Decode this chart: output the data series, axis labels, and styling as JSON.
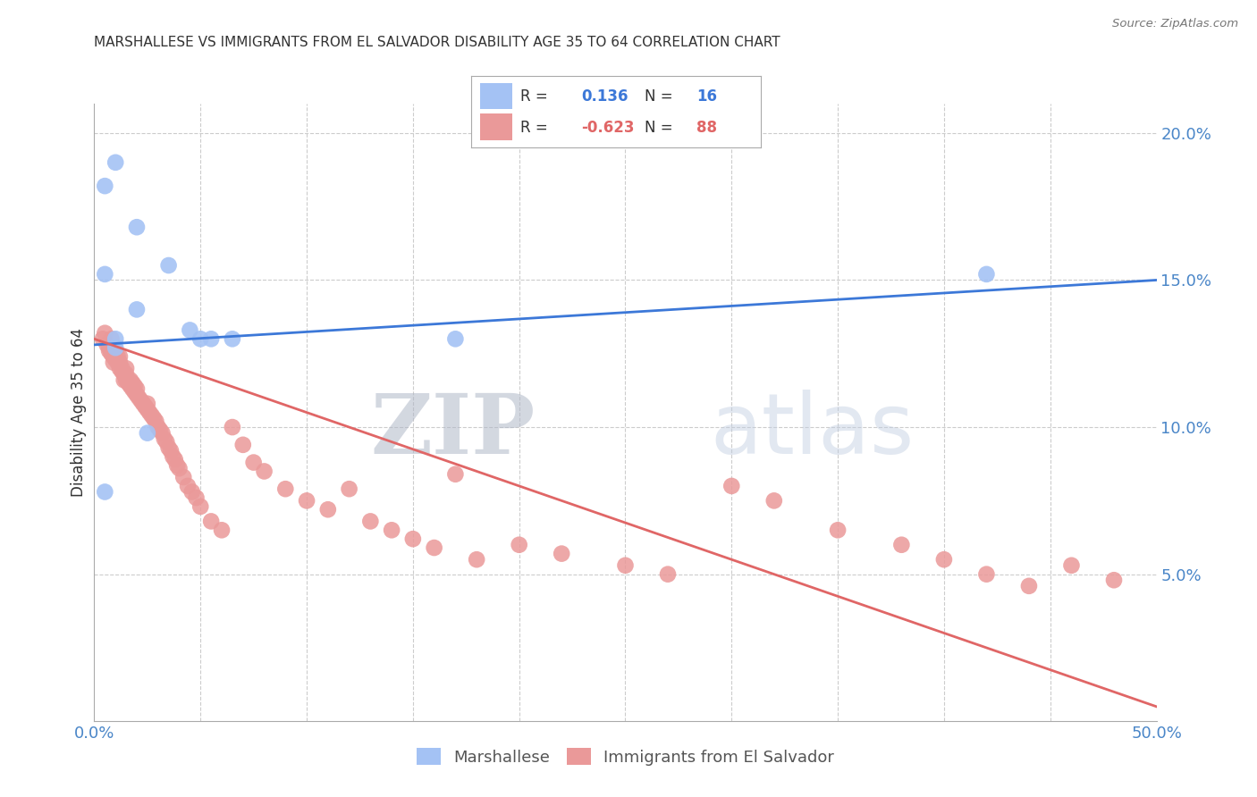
{
  "title": "MARSHALLESE VS IMMIGRANTS FROM EL SALVADOR DISABILITY AGE 35 TO 64 CORRELATION CHART",
  "source": "Source: ZipAtlas.com",
  "ylabel": "Disability Age 35 to 64",
  "xlim": [
    0.0,
    0.5
  ],
  "ylim": [
    0.0,
    0.21
  ],
  "blue_color": "#a4c2f4",
  "pink_color": "#ea9999",
  "blue_line_color": "#3c78d8",
  "pink_line_color": "#e06666",
  "legend_R_blue": "0.136",
  "legend_N_blue": "16",
  "legend_R_pink": "-0.623",
  "legend_N_pink": "88",
  "watermark_zip": "ZIP",
  "watermark_atlas": "atlas",
  "axis_color": "#4a86c8",
  "tick_color": "#4a86c8",
  "grid_color": "#cccccc",
  "bg_color": "#ffffff",
  "blue_scatter_x": [
    0.005,
    0.01,
    0.02,
    0.005,
    0.035,
    0.02,
    0.045,
    0.05,
    0.055,
    0.065,
    0.005,
    0.01,
    0.01,
    0.025,
    0.17,
    0.42
  ],
  "blue_scatter_y": [
    0.182,
    0.19,
    0.168,
    0.152,
    0.155,
    0.14,
    0.133,
    0.13,
    0.13,
    0.13,
    0.078,
    0.13,
    0.127,
    0.098,
    0.13,
    0.152
  ],
  "pink_scatter_x": [
    0.004,
    0.005,
    0.006,
    0.007,
    0.007,
    0.008,
    0.008,
    0.009,
    0.009,
    0.01,
    0.01,
    0.011,
    0.011,
    0.012,
    0.012,
    0.012,
    0.013,
    0.013,
    0.014,
    0.014,
    0.015,
    0.015,
    0.015,
    0.016,
    0.016,
    0.017,
    0.017,
    0.018,
    0.018,
    0.019,
    0.019,
    0.02,
    0.02,
    0.021,
    0.022,
    0.023,
    0.024,
    0.025,
    0.025,
    0.026,
    0.027,
    0.028,
    0.029,
    0.03,
    0.031,
    0.032,
    0.033,
    0.034,
    0.035,
    0.036,
    0.037,
    0.038,
    0.039,
    0.04,
    0.042,
    0.044,
    0.046,
    0.048,
    0.05,
    0.055,
    0.06,
    0.065,
    0.07,
    0.075,
    0.08,
    0.09,
    0.1,
    0.11,
    0.12,
    0.13,
    0.14,
    0.15,
    0.16,
    0.17,
    0.18,
    0.2,
    0.22,
    0.25,
    0.27,
    0.3,
    0.32,
    0.35,
    0.38,
    0.4,
    0.42,
    0.44,
    0.46,
    0.48
  ],
  "pink_scatter_y": [
    0.13,
    0.132,
    0.128,
    0.127,
    0.126,
    0.125,
    0.13,
    0.124,
    0.122,
    0.126,
    0.123,
    0.124,
    0.122,
    0.122,
    0.12,
    0.124,
    0.12,
    0.119,
    0.118,
    0.116,
    0.118,
    0.116,
    0.12,
    0.115,
    0.116,
    0.114,
    0.116,
    0.113,
    0.115,
    0.112,
    0.114,
    0.111,
    0.113,
    0.11,
    0.109,
    0.108,
    0.107,
    0.106,
    0.108,
    0.105,
    0.104,
    0.103,
    0.102,
    0.1,
    0.099,
    0.098,
    0.096,
    0.095,
    0.093,
    0.092,
    0.09,
    0.089,
    0.087,
    0.086,
    0.083,
    0.08,
    0.078,
    0.076,
    0.073,
    0.068,
    0.065,
    0.1,
    0.094,
    0.088,
    0.085,
    0.079,
    0.075,
    0.072,
    0.079,
    0.068,
    0.065,
    0.062,
    0.059,
    0.084,
    0.055,
    0.06,
    0.057,
    0.053,
    0.05,
    0.08,
    0.075,
    0.065,
    0.06,
    0.055,
    0.05,
    0.046,
    0.053,
    0.048
  ],
  "blue_line_x": [
    0.0,
    0.5
  ],
  "blue_line_y": [
    0.128,
    0.15
  ],
  "pink_line_x": [
    0.0,
    0.5
  ],
  "pink_line_y": [
    0.13,
    0.005
  ]
}
